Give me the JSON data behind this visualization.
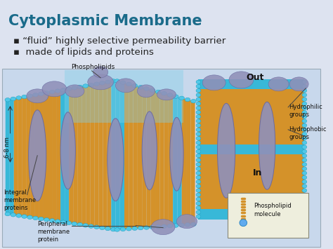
{
  "title": "Cytoplasmic Membrane",
  "title_color": "#1a6b8a",
  "title_fontsize": 15,
  "bullet1": "▪ “fluid” highly selective permeability barrier",
  "bullet2": "▪  made of lipids and proteins",
  "bullet_fontsize": 9.5,
  "bullet_color": "#222222",
  "slide_bg": "#dde3f0",
  "image_bg": "#c8d8ec",
  "label_out": "Out",
  "label_in": "In",
  "label_phospholipids": "Phospholipids",
  "label_6_8nm": "6-8 nm",
  "label_integral": "Integral\nmembrane\nproteins",
  "label_peripheral": "Peripheral\nmembrane\nprotein",
  "label_hydrophilic": "Hydrophilic\ngroups",
  "label_hydrophobic": "Hydrophobic\ngroups",
  "label_legend": "Phospholipid\nmolecule",
  "orange": "#d4922a",
  "cyan": "#38b8d8",
  "cyan_dot": "#50c8e8",
  "protein": "#9090b8",
  "protein_edge": "#6868a0",
  "net_color": "#80d0e8"
}
